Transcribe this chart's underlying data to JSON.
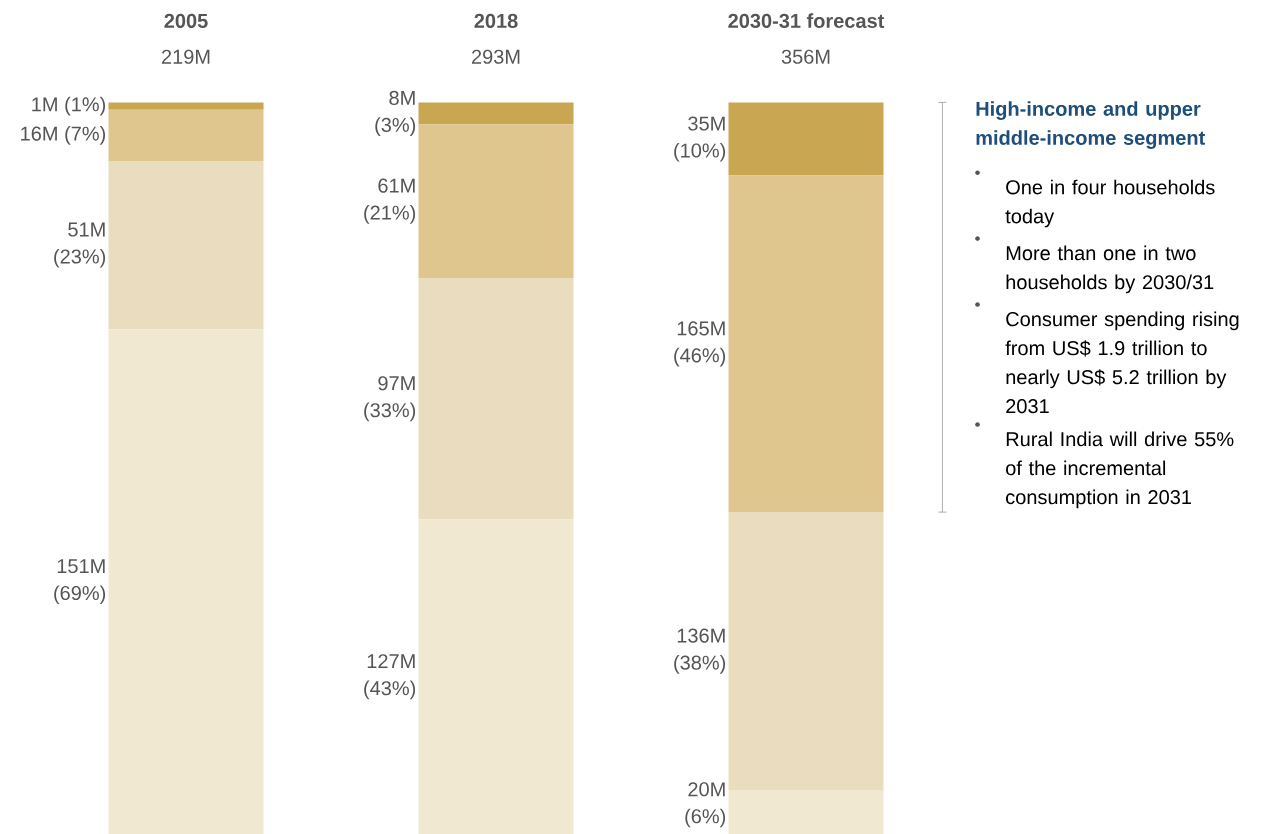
{
  "chart_data": {
    "type": "other",
    "categories": [
      "2005",
      "2018",
      "2030-31 forecast"
    ],
    "series": [
      {
        "color": "#f1e8d1",
        "values": [
          69,
          43,
          6
        ],
        "value_labels": [
          "151M (69%)",
          "127M (43%)",
          "20M (6%)"
        ]
      },
      {
        "color": "#eaddbf",
        "values": [
          23,
          33,
          38
        ],
        "value_labels": [
          "51M (23%)",
          "97M (33%)",
          "136M (38%)"
        ]
      },
      {
        "color": "#dfc68f",
        "values": [
          7,
          21,
          46
        ],
        "value_labels": [
          "16M (7%)",
          "61M (21%)",
          "165M (46%)"
        ]
      },
      {
        "color": "#c9a651",
        "values": [
          1,
          3,
          10
        ],
        "value_labels": [
          "1M (1%)",
          "8M (3%)",
          "35M (10%)"
        ]
      }
    ],
    "annotations": [
      "219M",
      "293M",
      "356M",
      "High-income and upper middle-income segment",
      "One in four households today",
      "More than one in two households by 2030/31",
      "Consumer spending rising from US$ 1.9 trillion to nearly US$ 5.2 trillion by 2031",
      "Rural India will drive 55% of the incremental consumption in 2031"
    ]
  }
}
